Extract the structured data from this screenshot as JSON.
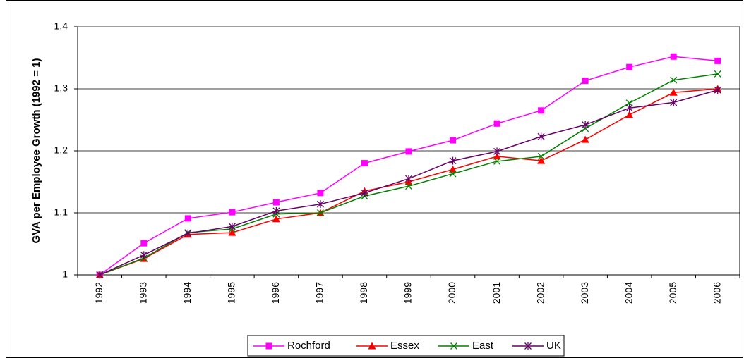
{
  "chart_data": {
    "type": "line",
    "y_label": "GVA per Employee Growth (1992 = 1)",
    "categories": [
      "1992",
      "1993",
      "1994",
      "1995",
      "1996",
      "1997",
      "1998",
      "1999",
      "2000",
      "2001",
      "2002",
      "2003",
      "2004",
      "2005",
      "2006"
    ],
    "series": [
      {
        "name": "Rochford",
        "color": "#ff00ff",
        "marker": "square",
        "values": [
          1.0,
          1.051,
          1.091,
          1.101,
          1.117,
          1.132,
          1.18,
          1.199,
          1.217,
          1.244,
          1.265,
          1.313,
          1.335,
          1.352,
          1.345
        ]
      },
      {
        "name": "Essex",
        "color": "#ff0000",
        "marker": "triangle",
        "values": [
          1.0,
          1.026,
          1.065,
          1.068,
          1.09,
          1.1,
          1.135,
          1.15,
          1.17,
          1.191,
          1.184,
          1.218,
          1.258,
          1.294,
          1.3
        ]
      },
      {
        "name": "East",
        "color": "#008000",
        "marker": "x",
        "values": [
          1.0,
          1.027,
          1.068,
          1.074,
          1.098,
          1.1,
          1.127,
          1.143,
          1.163,
          1.183,
          1.191,
          1.236,
          1.277,
          1.314,
          1.324
        ]
      },
      {
        "name": "UK",
        "color": "#660066",
        "marker": "star",
        "values": [
          1.0,
          1.032,
          1.067,
          1.078,
          1.103,
          1.114,
          1.132,
          1.155,
          1.184,
          1.199,
          1.223,
          1.242,
          1.269,
          1.278,
          1.298
        ]
      }
    ],
    "ylim": [
      1,
      1.4
    ],
    "yticks": [
      1,
      1.1,
      1.2,
      1.3,
      1.4
    ],
    "grid": true,
    "legend": "bottom"
  }
}
